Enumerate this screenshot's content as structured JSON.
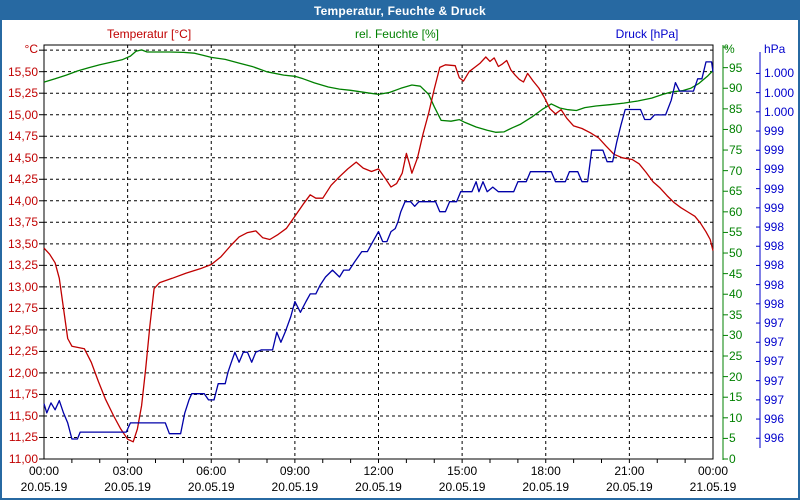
{
  "window": {
    "title": "Temperatur, Feuchte & Druck"
  },
  "legend": {
    "temperature": "Temperatur [°C]",
    "humidity": "rel. Feuchte [%]",
    "pressure": "Druck [hPa]"
  },
  "axes": {
    "temp_unit": "°C",
    "hum_unit": "%",
    "pressure_unit": "hPa",
    "temp_tick_labels": [
      "15,50",
      "15,25",
      "15,00",
      "14,75",
      "14,50",
      "14,25",
      "14,00",
      "13,75",
      "13,50",
      "13,25",
      "13,00",
      "12,75",
      "12,50",
      "12,25",
      "12,00",
      "11,75",
      "11,50",
      "11,25",
      "11,00"
    ],
    "hum_tick_labels": [
      "95",
      "90",
      "85",
      "80",
      "75",
      "70",
      "65",
      "60",
      "55",
      "50",
      "45",
      "40",
      "35",
      "30",
      "25",
      "20",
      "15",
      "10",
      "5",
      "0"
    ],
    "hpa_tick_labels": [
      "1.000",
      "1.000",
      "1.000",
      "999",
      "999",
      "999",
      "999",
      "999",
      "998",
      "998",
      "998",
      "998",
      "998",
      "997",
      "997",
      "997",
      "997",
      "997",
      "996",
      "996"
    ],
    "hpa_tick_top_value": 1000.75,
    "hpa_tick_step": -0.25,
    "time_ticks": [
      {
        "time": "00:00",
        "date": "20.05.19"
      },
      {
        "time": "03:00",
        "date": "20.05.19"
      },
      {
        "time": "06:00",
        "date": "20.05.19"
      },
      {
        "time": "09:00",
        "date": "20.05.19"
      },
      {
        "time": "12:00",
        "date": "20.05.19"
      },
      {
        "time": "15:00",
        "date": "20.05.19"
      },
      {
        "time": "18:00",
        "date": "20.05.19"
      },
      {
        "time": "21:00",
        "date": "20.05.19"
      },
      {
        "time": "00:00",
        "date": "21.05.19"
      }
    ]
  },
  "colors": {
    "titlebar": "#2769a2",
    "frame": "#000000",
    "grid": "#000000",
    "temperature": "#c00000",
    "humidity": "#008000",
    "pressure_curve": "#0000a8",
    "pressure_text": "#0000cc"
  },
  "chart_data": {
    "type": "line",
    "title": "Temperatur, Feuchte & Druck",
    "x_unit": "hours",
    "x_range": [
      0,
      24
    ],
    "x_gridline_step_hours": 3,
    "grid": "dashed",
    "series": [
      {
        "name": "Temperatur",
        "unit": "°C",
        "color": "#c00000",
        "axis_side": "left",
        "axis_range": [
          11.0,
          15.81
        ],
        "tick_step": 0.25,
        "points": [
          [
            0,
            13.45
          ],
          [
            0.2,
            13.38
          ],
          [
            0.4,
            13.28
          ],
          [
            0.55,
            13.1
          ],
          [
            0.7,
            12.75
          ],
          [
            0.85,
            12.4
          ],
          [
            1.0,
            12.31
          ],
          [
            1.45,
            12.28
          ],
          [
            1.7,
            12.12
          ],
          [
            1.95,
            11.9
          ],
          [
            2.2,
            11.7
          ],
          [
            2.5,
            11.5
          ],
          [
            2.75,
            11.35
          ],
          [
            3.0,
            11.23
          ],
          [
            3.2,
            11.2
          ],
          [
            3.35,
            11.35
          ],
          [
            3.5,
            11.62
          ],
          [
            3.65,
            12.05
          ],
          [
            3.8,
            12.55
          ],
          [
            3.95,
            12.98
          ],
          [
            4.15,
            13.05
          ],
          [
            4.6,
            13.1
          ],
          [
            5.1,
            13.16
          ],
          [
            5.6,
            13.21
          ],
          [
            6.0,
            13.26
          ],
          [
            6.35,
            13.35
          ],
          [
            6.7,
            13.48
          ],
          [
            7.0,
            13.58
          ],
          [
            7.3,
            13.63
          ],
          [
            7.6,
            13.65
          ],
          [
            7.85,
            13.57
          ],
          [
            8.1,
            13.55
          ],
          [
            8.4,
            13.61
          ],
          [
            8.7,
            13.68
          ],
          [
            9.0,
            13.82
          ],
          [
            9.3,
            13.96
          ],
          [
            9.55,
            14.07
          ],
          [
            9.75,
            14.03
          ],
          [
            10.0,
            14.03
          ],
          [
            10.3,
            14.18
          ],
          [
            10.6,
            14.28
          ],
          [
            10.9,
            14.37
          ],
          [
            11.2,
            14.45
          ],
          [
            11.45,
            14.38
          ],
          [
            11.75,
            14.34
          ],
          [
            12.0,
            14.37
          ],
          [
            12.2,
            14.28
          ],
          [
            12.45,
            14.16
          ],
          [
            12.65,
            14.2
          ],
          [
            12.85,
            14.32
          ],
          [
            13.0,
            14.55
          ],
          [
            13.1,
            14.44
          ],
          [
            13.2,
            14.32
          ],
          [
            13.4,
            14.5
          ],
          [
            13.6,
            14.78
          ],
          [
            13.8,
            15.02
          ],
          [
            14.0,
            15.3
          ],
          [
            14.2,
            15.55
          ],
          [
            14.4,
            15.58
          ],
          [
            14.75,
            15.57
          ],
          [
            14.9,
            15.43
          ],
          [
            15.05,
            15.39
          ],
          [
            15.25,
            15.5
          ],
          [
            15.45,
            15.55
          ],
          [
            15.65,
            15.6
          ],
          [
            15.85,
            15.67
          ],
          [
            16.0,
            15.62
          ],
          [
            16.15,
            15.66
          ],
          [
            16.3,
            15.56
          ],
          [
            16.45,
            15.59
          ],
          [
            16.6,
            15.63
          ],
          [
            16.75,
            15.52
          ],
          [
            16.9,
            15.46
          ],
          [
            17.05,
            15.41
          ],
          [
            17.2,
            15.38
          ],
          [
            17.35,
            15.48
          ],
          [
            17.55,
            15.39
          ],
          [
            17.75,
            15.31
          ],
          [
            17.95,
            15.2
          ],
          [
            18.15,
            15.07
          ],
          [
            18.35,
            15.01
          ],
          [
            18.55,
            15.06
          ],
          [
            18.75,
            14.96
          ],
          [
            19.0,
            14.87
          ],
          [
            19.3,
            14.84
          ],
          [
            19.6,
            14.79
          ],
          [
            19.9,
            14.73
          ],
          [
            20.15,
            14.64
          ],
          [
            20.45,
            14.54
          ],
          [
            20.75,
            14.5
          ],
          [
            21.1,
            14.48
          ],
          [
            21.35,
            14.43
          ],
          [
            21.6,
            14.33
          ],
          [
            21.85,
            14.22
          ],
          [
            22.1,
            14.15
          ],
          [
            22.35,
            14.06
          ],
          [
            22.6,
            13.98
          ],
          [
            22.85,
            13.92
          ],
          [
            23.1,
            13.87
          ],
          [
            23.35,
            13.82
          ],
          [
            23.55,
            13.74
          ],
          [
            23.75,
            13.64
          ],
          [
            23.9,
            13.55
          ],
          [
            24,
            13.42
          ]
        ]
      },
      {
        "name": "rel. Feuchte",
        "unit": "%",
        "color": "#008000",
        "axis_side": "right-inner",
        "axis_range": [
          0,
          100.5
        ],
        "tick_step": 5,
        "points": [
          [
            0,
            91.5
          ],
          [
            0.4,
            92.3
          ],
          [
            0.8,
            93.2
          ],
          [
            1.2,
            94.2
          ],
          [
            1.6,
            95.0
          ],
          [
            2.0,
            95.7
          ],
          [
            2.4,
            96.3
          ],
          [
            2.8,
            96.9
          ],
          [
            3.1,
            97.8
          ],
          [
            3.3,
            99.0
          ],
          [
            3.5,
            99.3
          ],
          [
            3.7,
            98.8
          ],
          [
            4.5,
            98.8
          ],
          [
            5.0,
            98.7
          ],
          [
            5.4,
            98.5
          ],
          [
            5.7,
            98.0
          ],
          [
            6.0,
            97.5
          ],
          [
            6.5,
            97.0
          ],
          [
            7.0,
            96.1
          ],
          [
            7.5,
            95.2
          ],
          [
            8.0,
            94.0
          ],
          [
            8.6,
            93.2
          ],
          [
            9.0,
            92.9
          ],
          [
            9.3,
            92.3
          ],
          [
            9.7,
            91.3
          ],
          [
            10.2,
            90.3
          ],
          [
            10.6,
            89.8
          ],
          [
            11.0,
            89.5
          ],
          [
            11.6,
            88.9
          ],
          [
            12.0,
            88.5
          ],
          [
            12.4,
            89.0
          ],
          [
            12.8,
            90.0
          ],
          [
            13.2,
            90.8
          ],
          [
            13.5,
            90.5
          ],
          [
            13.8,
            88.5
          ],
          [
            14.0,
            85.5
          ],
          [
            14.25,
            82.2
          ],
          [
            14.6,
            82.0
          ],
          [
            14.9,
            82.4
          ],
          [
            15.1,
            81.7
          ],
          [
            15.5,
            80.6
          ],
          [
            15.9,
            79.8
          ],
          [
            16.2,
            79.3
          ],
          [
            16.5,
            79.4
          ],
          [
            16.8,
            80.4
          ],
          [
            17.1,
            81.3
          ],
          [
            17.5,
            83.0
          ],
          [
            17.9,
            85.0
          ],
          [
            18.2,
            86.2
          ],
          [
            18.5,
            85.2
          ],
          [
            18.8,
            84.8
          ],
          [
            19.1,
            84.6
          ],
          [
            19.4,
            85.3
          ],
          [
            19.8,
            85.7
          ],
          [
            20.3,
            86.0
          ],
          [
            20.8,
            86.4
          ],
          [
            21.3,
            86.9
          ],
          [
            21.8,
            87.6
          ],
          [
            22.2,
            88.5
          ],
          [
            22.5,
            89.1
          ],
          [
            22.9,
            89.4
          ],
          [
            23.2,
            90.0
          ],
          [
            23.5,
            91.2
          ],
          [
            23.8,
            92.9
          ],
          [
            24,
            94.3
          ]
        ]
      },
      {
        "name": "Druck",
        "unit": "hPa",
        "color": "#0000a8",
        "axis_side": "right-outer",
        "axis_range": [
          995.73,
          1001.12
        ],
        "points": [
          [
            0,
            996.45
          ],
          [
            0.1,
            996.33
          ],
          [
            0.25,
            996.46
          ],
          [
            0.4,
            996.37
          ],
          [
            0.55,
            996.49
          ],
          [
            0.7,
            996.33
          ],
          [
            0.85,
            996.2
          ],
          [
            1.0,
            995.99
          ],
          [
            1.2,
            995.99
          ],
          [
            1.3,
            996.08
          ],
          [
            2.95,
            996.08
          ],
          [
            3.1,
            996.2
          ],
          [
            4.35,
            996.2
          ],
          [
            4.5,
            996.06
          ],
          [
            4.9,
            996.06
          ],
          [
            5.05,
            996.33
          ],
          [
            5.2,
            996.5
          ],
          [
            5.3,
            996.58
          ],
          [
            5.75,
            996.58
          ],
          [
            5.9,
            996.5
          ],
          [
            6.1,
            996.5
          ],
          [
            6.25,
            996.71
          ],
          [
            6.5,
            996.71
          ],
          [
            6.6,
            996.86
          ],
          [
            6.7,
            996.97
          ],
          [
            6.85,
            997.12
          ],
          [
            7.0,
            996.99
          ],
          [
            7.15,
            997.12
          ],
          [
            7.3,
            997.12
          ],
          [
            7.45,
            996.99
          ],
          [
            7.6,
            997.12
          ],
          [
            7.8,
            997.15
          ],
          [
            8.2,
            997.15
          ],
          [
            8.35,
            997.38
          ],
          [
            8.5,
            997.25
          ],
          [
            8.65,
            997.38
          ],
          [
            8.85,
            997.58
          ],
          [
            9.0,
            997.78
          ],
          [
            9.2,
            997.64
          ],
          [
            9.4,
            997.78
          ],
          [
            9.55,
            997.88
          ],
          [
            9.75,
            997.88
          ],
          [
            9.9,
            997.99
          ],
          [
            10.1,
            998.1
          ],
          [
            10.35,
            998.19
          ],
          [
            10.6,
            998.1
          ],
          [
            10.75,
            998.19
          ],
          [
            10.95,
            998.19
          ],
          [
            11.15,
            998.3
          ],
          [
            11.4,
            998.43
          ],
          [
            11.6,
            998.43
          ],
          [
            11.8,
            998.56
          ],
          [
            12.0,
            998.69
          ],
          [
            12.15,
            998.56
          ],
          [
            12.3,
            998.56
          ],
          [
            12.45,
            998.69
          ],
          [
            12.6,
            998.73
          ],
          [
            12.7,
            998.82
          ],
          [
            12.8,
            998.95
          ],
          [
            12.95,
            999.08
          ],
          [
            13.15,
            999.08
          ],
          [
            13.3,
            999.02
          ],
          [
            13.45,
            999.08
          ],
          [
            14.05,
            999.08
          ],
          [
            14.2,
            998.95
          ],
          [
            14.4,
            998.95
          ],
          [
            14.55,
            999.08
          ],
          [
            14.8,
            999.08
          ],
          [
            14.95,
            999.21
          ],
          [
            15.35,
            999.21
          ],
          [
            15.5,
            999.34
          ],
          [
            15.6,
            999.21
          ],
          [
            15.75,
            999.34
          ],
          [
            15.9,
            999.21
          ],
          [
            16.1,
            999.27
          ],
          [
            16.3,
            999.21
          ],
          [
            16.85,
            999.21
          ],
          [
            17.0,
            999.34
          ],
          [
            17.3,
            999.34
          ],
          [
            17.45,
            999.47
          ],
          [
            18.2,
            999.47
          ],
          [
            18.35,
            999.34
          ],
          [
            18.7,
            999.34
          ],
          [
            18.85,
            999.47
          ],
          [
            19.15,
            999.47
          ],
          [
            19.3,
            999.34
          ],
          [
            19.5,
            999.34
          ],
          [
            19.65,
            999.75
          ],
          [
            20.05,
            999.75
          ],
          [
            20.2,
            999.6
          ],
          [
            20.4,
            999.6
          ],
          [
            20.55,
            999.86
          ],
          [
            20.7,
            1000.08
          ],
          [
            20.85,
            1000.28
          ],
          [
            21.4,
            1000.28
          ],
          [
            21.55,
            1000.15
          ],
          [
            21.75,
            1000.15
          ],
          [
            21.9,
            1000.21
          ],
          [
            22.3,
            1000.21
          ],
          [
            22.5,
            1000.4
          ],
          [
            22.65,
            1000.63
          ],
          [
            22.8,
            1000.52
          ],
          [
            23.3,
            1000.52
          ],
          [
            23.45,
            1000.68
          ],
          [
            23.6,
            1000.68
          ],
          [
            23.75,
            1000.9
          ],
          [
            23.95,
            1000.9
          ],
          [
            24,
            1000.77
          ]
        ]
      }
    ]
  }
}
